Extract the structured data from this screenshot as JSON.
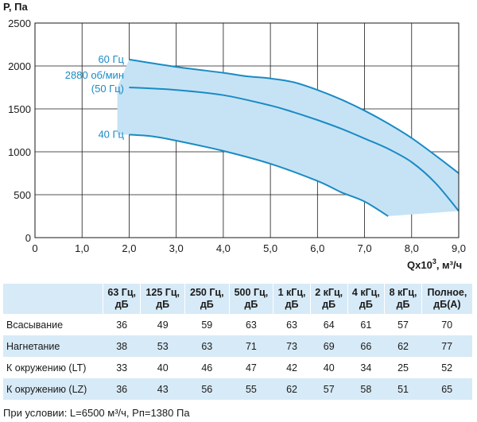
{
  "chart_data": {
    "type": "line",
    "ylabel": "Р, Па",
    "xlabel_main": "Qx10",
    "xlabel_sup": "3",
    "xlabel_rest": ", м³/ч",
    "xlim": [
      0,
      9
    ],
    "ylim": [
      0,
      2500
    ],
    "x_ticks": [
      0,
      1,
      2,
      3,
      4,
      5,
      6,
      7,
      8,
      9
    ],
    "x_tick_labels": [
      "0",
      "1,0",
      "2,0",
      "3,0",
      "4,0",
      "5,0",
      "6,0",
      "7,0",
      "8,0",
      "9,0"
    ],
    "y_ticks": [
      0,
      500,
      1000,
      1500,
      2000,
      2500
    ],
    "y_tick_labels": [
      "0",
      "500",
      "1000",
      "1500",
      "2000",
      "2500"
    ],
    "grid": true,
    "colors": {
      "curve": "#1a8bc4",
      "fill": "#c6e3f5",
      "grid": "#1a1a1a"
    },
    "series": [
      {
        "name": "60 Гц",
        "x": [
          2.0,
          3.0,
          4.0,
          4.5,
          5.0,
          5.5,
          6.0,
          6.5,
          7.0,
          7.5,
          8.0,
          8.5,
          9.0
        ],
        "y": [
          2075,
          1990,
          1920,
          1880,
          1855,
          1810,
          1720,
          1610,
          1480,
          1330,
          1160,
          960,
          750
        ]
      },
      {
        "name": "2880 об/мин\n(50 Гц)",
        "label_lines": [
          "2880 об/мин",
          "(50 Гц)"
        ],
        "x": [
          2.0,
          3.0,
          4.0,
          5.0,
          5.5,
          6.0,
          6.5,
          7.0,
          7.5,
          8.0,
          8.5,
          9.0
        ],
        "y": [
          1750,
          1720,
          1660,
          1540,
          1460,
          1370,
          1270,
          1155,
          1035,
          880,
          640,
          310
        ]
      },
      {
        "name": "40 Гц",
        "x": [
          2.0,
          2.5,
          3.0,
          4.0,
          5.0,
          6.0,
          6.5,
          7.0,
          7.5
        ],
        "y": [
          1200,
          1180,
          1130,
          1010,
          860,
          660,
          530,
          420,
          250
        ]
      }
    ],
    "envelope": {
      "x": [
        2.0,
        3.0,
        4.0,
        4.5,
        5.0,
        5.5,
        6.0,
        6.5,
        7.0,
        7.5,
        8.0,
        8.5,
        9.0,
        9.0,
        7.5,
        7.0,
        6.5,
        6.0,
        5.0,
        4.0,
        3.0,
        2.5,
        2.0,
        1.75,
        1.75
      ],
      "y": [
        2075,
        1990,
        1920,
        1880,
        1855,
        1810,
        1720,
        1610,
        1480,
        1330,
        1160,
        960,
        750,
        310,
        250,
        420,
        530,
        660,
        860,
        1010,
        1130,
        1180,
        1200,
        1200,
        1750
      ]
    }
  },
  "table": {
    "headers": [
      {
        "line1": "",
        "line2": ""
      },
      {
        "line1": "63 Гц,",
        "line2": "дБ"
      },
      {
        "line1": "125 Гц,",
        "line2": "дБ"
      },
      {
        "line1": "250 Гц,",
        "line2": "дБ"
      },
      {
        "line1": "500 Гц,",
        "line2": "дБ"
      },
      {
        "line1": "1 кГц,",
        "line2": "дБ"
      },
      {
        "line1": "2 кГц,",
        "line2": "дБ"
      },
      {
        "line1": "4 кГц,",
        "line2": "дБ"
      },
      {
        "line1": "8 кГц,",
        "line2": "дБ"
      },
      {
        "line1": "Полное,",
        "line2": "дБ(А)"
      }
    ],
    "rows": [
      {
        "label": "Всасывание",
        "values": [
          "36",
          "49",
          "59",
          "63",
          "63",
          "64",
          "61",
          "57",
          "70"
        ]
      },
      {
        "label": "Нагнетание",
        "values": [
          "38",
          "53",
          "63",
          "71",
          "73",
          "69",
          "66",
          "62",
          "77"
        ]
      },
      {
        "label": "К окружению (LT)",
        "values": [
          "33",
          "40",
          "46",
          "47",
          "42",
          "40",
          "34",
          "25",
          "52"
        ]
      },
      {
        "label": "К окружению (LZ)",
        "values": [
          "36",
          "43",
          "56",
          "55",
          "62",
          "57",
          "58",
          "51",
          "65"
        ]
      }
    ]
  },
  "footnote": "При условии: L=6500 м³/ч, Рп=1380 Па"
}
